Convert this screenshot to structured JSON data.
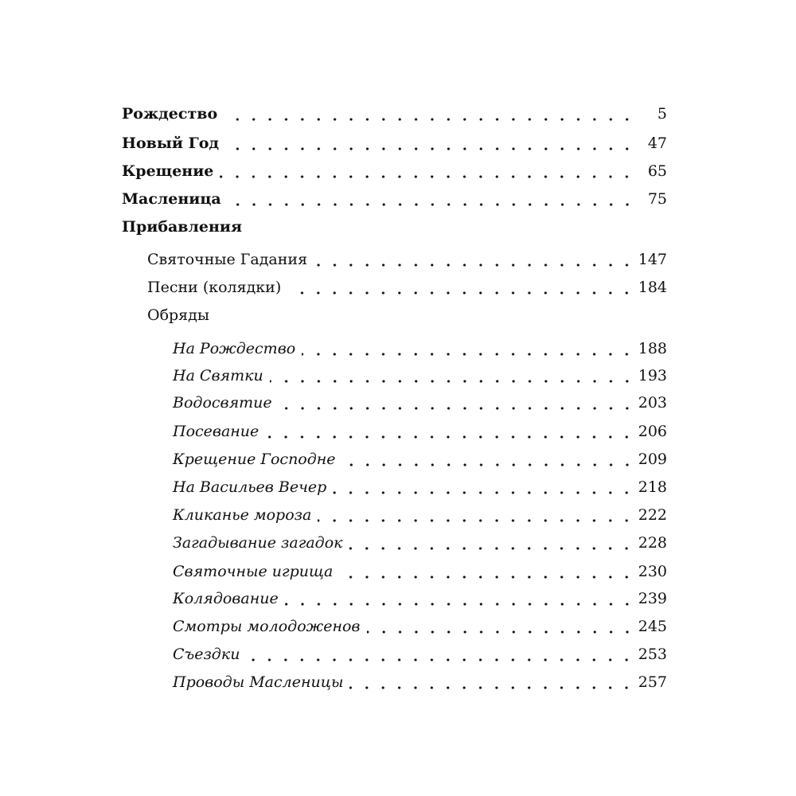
{
  "toc": [
    {
      "title": "Рождество",
      "page": "5",
      "level": 0
    },
    {
      "title": "Новый Год",
      "page": "47",
      "level": 0
    },
    {
      "title": "Крещение",
      "page": "65",
      "level": 0
    },
    {
      "title": "Масленица",
      "page": "75",
      "level": 0
    },
    {
      "title": "Прибавления",
      "page": null,
      "level": 0
    },
    {
      "title": "Святочные Гадания",
      "page": "147",
      "level": 1
    },
    {
      "title": "Песни (колядки)",
      "page": "184",
      "level": 1
    },
    {
      "title": "Обряды",
      "page": null,
      "level": 1
    },
    {
      "title": "На Рождество",
      "page": "188",
      "level": 2
    },
    {
      "title": "На Святки",
      "page": "193",
      "level": 2
    },
    {
      "title": "Водосвятие",
      "page": "203",
      "level": 2
    },
    {
      "title": "Посевание",
      "page": "206",
      "level": 2
    },
    {
      "title": "Крещение Господне",
      "page": "209",
      "level": 2
    },
    {
      "title": "На Васильев Вечер",
      "page": "218",
      "level": 2
    },
    {
      "title": "Кликанье мороза",
      "page": "222",
      "level": 2
    },
    {
      "title": "Загадывание загадок",
      "page": "228",
      "level": 2
    },
    {
      "title": "Святочные игрища",
      "page": "230",
      "level": 2
    },
    {
      "title": "Колядование",
      "page": "239",
      "level": 2
    },
    {
      "title": "Смотры молодоженов",
      "page": "245",
      "level": 2
    },
    {
      "title": "Съездки",
      "page": "253",
      "level": 2
    },
    {
      "title": "Проводы Масленицы",
      "page": "257",
      "level": 2
    }
  ]
}
